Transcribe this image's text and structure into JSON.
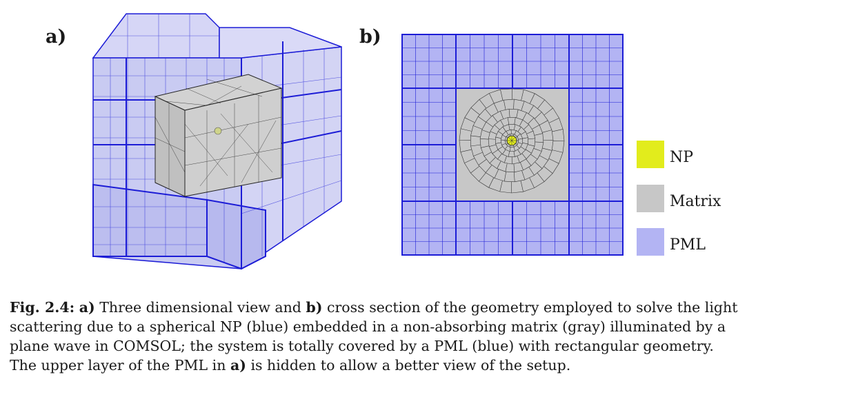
{
  "panels": {
    "a_label": "a)",
    "b_label": "b)"
  },
  "colors": {
    "np": "#e2ec1c",
    "matrix": "#c7c7c7",
    "pml": "#b3b4f3",
    "mesh_blue": "#1c1cd6",
    "mesh_dark": "#333333"
  },
  "legend": [
    {
      "label": "NP",
      "color": "#e2ec1c"
    },
    {
      "label": "Matrix",
      "color": "#c7c7c7"
    },
    {
      "label": "PML",
      "color": "#b3b4f3"
    }
  ],
  "caption": {
    "fig_label": "Fig. 2.4:",
    "line1_a": "a)",
    "line1_t1": " Three dimensional view and ",
    "line1_b": "b)",
    "line1_t2": " cross section of the geometry employed to solve the light",
    "line2": "scattering due to a spherical NP (blue) embedded in a non-absorbing matrix (gray) illuminated by a",
    "line3": "plane wave in COMSOL; the system is totally covered by a PML (blue) with rectangular geometry.",
    "line4_t1": "The upper layer of the PML in ",
    "line4_a": "a)",
    "line4_t2": " is hidden to allow a better view of the setup."
  }
}
